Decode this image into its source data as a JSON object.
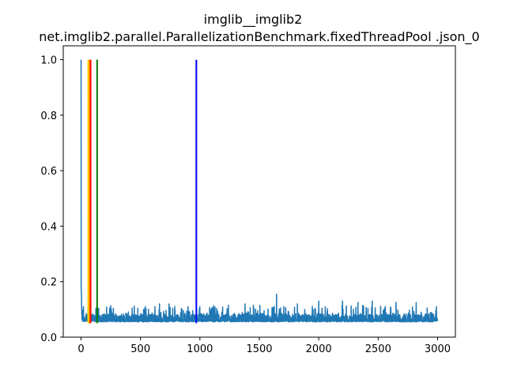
{
  "chart_data": {
    "type": "line",
    "title": "imglib__imglib2",
    "subtitle": "net.imglib2.parallel.ParallelizationBenchmark.fixedThreadPool .json_0",
    "xlabel": "",
    "ylabel": "",
    "xlim": [
      -150,
      3150
    ],
    "ylim": [
      0.0,
      1.05
    ],
    "grid": false,
    "x_ticks": [
      0,
      500,
      1000,
      1500,
      2000,
      2500,
      3000
    ],
    "x_tick_labels": [
      "0",
      "500",
      "1000",
      "1500",
      "2000",
      "2500",
      "3000"
    ],
    "y_ticks": [
      0.0,
      0.2,
      0.4,
      0.6,
      0.8,
      1.0
    ],
    "y_tick_labels": [
      "0.0",
      "0.2",
      "0.4",
      "0.6",
      "0.8",
      "1.0"
    ],
    "series": [
      {
        "color": "#1f77b4",
        "n_points": 3000,
        "start_value": 1.0,
        "initial_values": [
          0.17,
          0.165,
          0.16,
          0.13,
          0.11,
          0.09,
          0.075,
          0.065
        ],
        "baseline": 0.055,
        "typical_max": 0.11,
        "spikes": [
          {
            "x": 20,
            "y": 0.11
          },
          {
            "x": 125,
            "y": 0.1
          },
          {
            "x": 240,
            "y": 0.105
          },
          {
            "x": 430,
            "y": 0.105
          },
          {
            "x": 540,
            "y": 0.11
          },
          {
            "x": 660,
            "y": 0.12
          },
          {
            "x": 740,
            "y": 0.12
          },
          {
            "x": 900,
            "y": 0.11
          },
          {
            "x": 1100,
            "y": 0.105
          },
          {
            "x": 1240,
            "y": 0.115
          },
          {
            "x": 1380,
            "y": 0.12
          },
          {
            "x": 1450,
            "y": 0.115
          },
          {
            "x": 1645,
            "y": 0.155
          },
          {
            "x": 1820,
            "y": 0.12
          },
          {
            "x": 2000,
            "y": 0.13
          },
          {
            "x": 2200,
            "y": 0.13
          },
          {
            "x": 2330,
            "y": 0.125
          },
          {
            "x": 2450,
            "y": 0.13
          },
          {
            "x": 2650,
            "y": 0.125
          },
          {
            "x": 2820,
            "y": 0.125
          },
          {
            "x": 2990,
            "y": 0.11
          }
        ]
      }
    ],
    "vertical_lines": [
      {
        "x": 60,
        "color": "#ffd700",
        "ymin": 0.05,
        "ymax": 1.0
      },
      {
        "x": 70,
        "color": "#ffa500",
        "ymin": 0.05,
        "ymax": 1.0
      },
      {
        "x": 80,
        "color": "#ff0000",
        "ymin": 0.05,
        "ymax": 1.0
      },
      {
        "x": 135,
        "color": "#008000",
        "ymin": 0.05,
        "ymax": 1.0
      },
      {
        "x": 970,
        "color": "#0000ff",
        "ymin": 0.05,
        "ymax": 1.0
      }
    ]
  }
}
